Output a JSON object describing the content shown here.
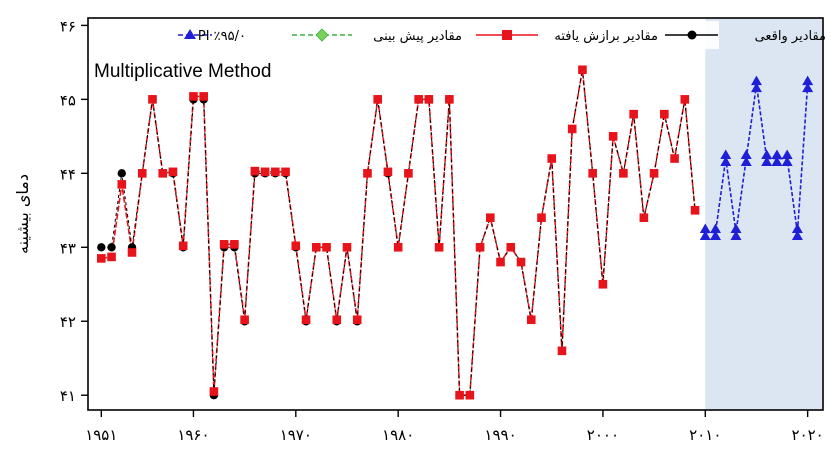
{
  "chart_data": {
    "type": "line",
    "method_label": "Multiplicative Method",
    "ylabel": "دمای بیشینه",
    "ylim": [
      40.8,
      46.1
    ],
    "xlim": [
      1949.7,
      2021.5
    ],
    "yticks": [
      41,
      42,
      43,
      44,
      45,
      46
    ],
    "ytick_labels": [
      "۴۱",
      "۴۲",
      "۴۳",
      "۴۴",
      "۴۵",
      "۴۶"
    ],
    "xticks": [
      1951,
      1960,
      1970,
      1980,
      1990,
      2000,
      2010,
      2020
    ],
    "xtick_labels": [
      "۱۹۵۱",
      "۱۹۶۰",
      "۱۹۷۰",
      "۱۹۸۰",
      "۱۹۹۰",
      "۲۰۰۰",
      "۲۰۱۰",
      "۲۰۲۰"
    ],
    "forecast_region": [
      2010,
      2021.5
    ],
    "colors": {
      "actual": "#000000",
      "fitted": "#e8141b",
      "predicted": "#3cb043",
      "pi": "#1f1fd8",
      "forecast_bg": "#dce6f2"
    },
    "legend": {
      "actual": "مقادیر واقعی",
      "fitted": "مقادیر برازش یافته",
      "predicted": "مقادیر پیش بینی",
      "pi": "PI ٪۹۵/۰"
    },
    "series": [
      {
        "name": "مقادیر واقعی",
        "x": [
          1951,
          1952,
          1953,
          1954,
          1955,
          1956,
          1957,
          1958,
          1959,
          1960,
          1961,
          1962,
          1963,
          1964,
          1965,
          1966,
          1967,
          1968,
          1969,
          1970,
          1971,
          1972,
          1973,
          1974,
          1975,
          1976,
          1977,
          1978,
          1979,
          1980,
          1981,
          1982,
          1983,
          1984,
          1985,
          1986,
          1987,
          1988,
          1989,
          1990,
          1991,
          1992,
          1993,
          1994,
          1995,
          1996,
          1997,
          1998,
          1999,
          2000,
          2001,
          2002,
          2003,
          2004,
          2005,
          2006,
          2007,
          2008,
          2009
        ],
        "y": [
          43,
          43,
          44,
          43,
          44,
          45,
          44,
          44,
          43,
          45,
          45,
          41,
          43,
          43,
          42,
          44,
          44,
          44,
          44,
          43,
          42,
          43,
          43,
          42,
          43,
          42,
          44,
          45,
          44,
          43,
          44,
          45,
          45,
          43,
          45,
          41,
          41,
          43,
          43.4,
          42.8,
          43,
          42.8,
          42,
          43.4,
          44.2,
          41.6,
          44.6,
          45.4,
          44,
          42.5,
          44.5,
          44,
          44.8,
          43.4,
          44,
          44.8,
          44.2,
          45,
          43.5
        ],
        "show_markers": [
          true,
          true,
          true,
          true,
          true,
          true,
          true,
          true,
          true,
          true,
          true,
          true,
          true,
          true,
          true,
          true,
          true,
          true,
          true,
          true,
          true,
          true,
          true,
          true,
          true,
          true,
          true,
          true,
          true,
          true,
          true,
          true,
          true,
          true,
          true,
          true,
          true,
          true,
          false,
          false,
          false,
          false,
          false,
          false,
          false,
          false,
          false,
          false,
          false,
          false,
          false,
          false,
          false,
          false,
          false,
          false,
          false,
          false,
          false
        ]
      },
      {
        "name": "مقادیر برازش یافته",
        "x": [
          1951,
          1952,
          1953,
          1954,
          1955,
          1956,
          1957,
          1958,
          1959,
          1960,
          1961,
          1962,
          1963,
          1964,
          1965,
          1966,
          1967,
          1968,
          1969,
          1970,
          1971,
          1972,
          1973,
          1974,
          1975,
          1976,
          1977,
          1978,
          1979,
          1980,
          1981,
          1982,
          1983,
          1984,
          1985,
          1986,
          1987,
          1988,
          1989,
          1990,
          1991,
          1992,
          1993,
          1994,
          1995,
          1996,
          1997,
          1998,
          1999,
          2000,
          2001,
          2002,
          2003,
          2004,
          2005,
          2006,
          2007,
          2008,
          2009
        ],
        "y": [
          42.85,
          42.87,
          43.85,
          42.93,
          44,
          45,
          44,
          44.02,
          43.02,
          45.04,
          45.04,
          41.05,
          43.04,
          43.04,
          42.02,
          44.03,
          44.02,
          44.02,
          44.02,
          43.02,
          42.02,
          43,
          43,
          42.02,
          43,
          42.02,
          44,
          45,
          44.02,
          43,
          44,
          45,
          45,
          43,
          45,
          41,
          41,
          43,
          43.4,
          42.8,
          43,
          42.8,
          42.02,
          43.4,
          44.2,
          41.6,
          44.6,
          45.4,
          44,
          42.5,
          44.5,
          44,
          44.8,
          43.4,
          44,
          44.8,
          44.2,
          45,
          43.5
        ]
      },
      {
        "name": "PI ٪۹۵/۰",
        "x": [
          2010,
          2011,
          2012,
          2013,
          2014,
          2015,
          2016,
          2017,
          2018,
          2019,
          2020
        ],
        "y": [
          43.2,
          43.2,
          44.2,
          43.2,
          44.2,
          45.2,
          44.2,
          44.2,
          44.2,
          43.2,
          45.2
        ]
      }
    ]
  }
}
